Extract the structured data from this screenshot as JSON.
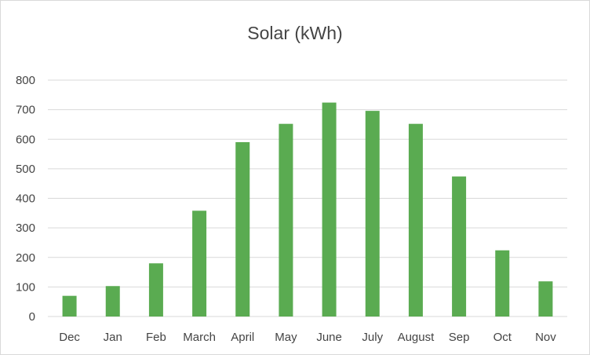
{
  "chart_data": {
    "type": "bar",
    "title": "Solar (kWh)",
    "xlabel": "",
    "ylabel": "",
    "categories": [
      "Dec",
      "Jan",
      "Feb",
      "March",
      "April",
      "May",
      "June",
      "July",
      "August",
      "Sep",
      "Oct",
      "Nov"
    ],
    "values": [
      70,
      103,
      180,
      358,
      590,
      652,
      724,
      696,
      652,
      474,
      224,
      119
    ],
    "ylim": [
      0,
      800
    ],
    "yticks": [
      0,
      100,
      200,
      300,
      400,
      500,
      600,
      700,
      800
    ],
    "grid": true,
    "legend": "none",
    "colors": {
      "bar": "#5aab51",
      "grid": "#d9d9d9",
      "text": "#444444"
    }
  }
}
